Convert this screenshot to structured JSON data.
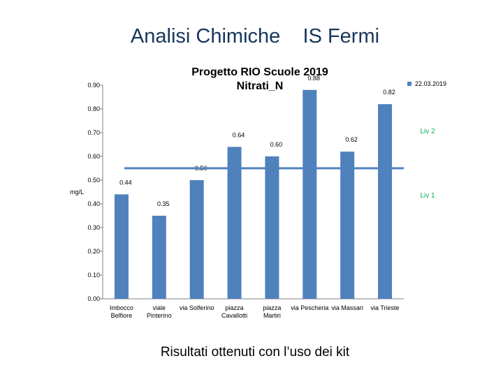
{
  "slide": {
    "title": "Analisi Chimiche    IS Fermi",
    "footer": "Risultati ottenuti con l’uso dei kit"
  },
  "chart_data": {
    "type": "bar",
    "title": "Progetto RIO Scuole 2019",
    "subtitle": "Nitrati_N",
    "ylabel": "mg/L",
    "xlabel": "",
    "ylim": [
      0,
      0.9
    ],
    "yticks": [
      "0.00",
      "0.10",
      "0.20",
      "0.30",
      "0.40",
      "0.50",
      "0.60",
      "0.70",
      "0.80",
      "0.90"
    ],
    "categories": [
      [
        "Imbocco",
        "Belfiore"
      ],
      [
        "viale",
        "Pinterino"
      ],
      [
        "via Solferino"
      ],
      [
        "piazza",
        "Cavallotti"
      ],
      [
        "piazza",
        "Martiri"
      ],
      [
        "via Pescheria"
      ],
      [
        "via Massari"
      ],
      [
        "via Trieste"
      ]
    ],
    "series": [
      {
        "name": "22.03.2019",
        "values": [
          0.44,
          0.35,
          0.5,
          0.64,
          0.6,
          0.88,
          0.62,
          0.82
        ],
        "labels": [
          "0.44",
          "0.35",
          "0.50",
          "0.64",
          "0.60",
          "0.88",
          "0.62",
          "0.82"
        ]
      }
    ],
    "reference_lines": [
      {
        "name": "Liv 2",
        "value": 0.55,
        "color": "#00b050"
      },
      {
        "name": "Liv 1",
        "color": "#00b050"
      }
    ],
    "grid": false,
    "legend": "top-right",
    "colors": {
      "bar": "#4f81bd",
      "line": "#4f81bd",
      "axis": "#808080",
      "text": "#000000",
      "level_label": "#00b050"
    }
  }
}
